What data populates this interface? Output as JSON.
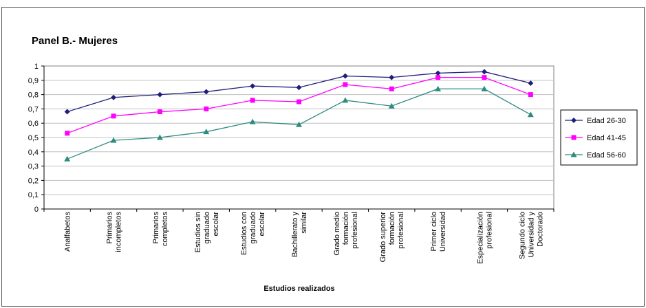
{
  "chart_data": {
    "type": "line",
    "title": "Panel B.- Mujeres",
    "xlabel": "Estudios realizados",
    "ylabel": "",
    "ylim": [
      0,
      1
    ],
    "yticks": [
      "0",
      "0,1",
      "0,2",
      "0,3",
      "0,4",
      "0,5",
      "0,6",
      "0,7",
      "0,8",
      "0,9",
      "1"
    ],
    "grid": true,
    "legend_position": "right",
    "categories": [
      [
        "Analfabetos"
      ],
      [
        "Primarios",
        "incompletos"
      ],
      [
        "Primarios",
        "completos"
      ],
      [
        "Estudios sin",
        "graduado",
        "escolar"
      ],
      [
        "Estudios con",
        "graduado",
        "escolar"
      ],
      [
        "Bachillerato y",
        "similar"
      ],
      [
        "Grado medio",
        "formación",
        "profesional"
      ],
      [
        "Grado superior",
        "formación",
        "profesional"
      ],
      [
        "Primer ciclo",
        "Universidad"
      ],
      [
        "Especialización",
        "profesional"
      ],
      [
        "Segundo ciclo",
        "Universidad y",
        "Doctorado"
      ]
    ],
    "series": [
      {
        "name": "Edad 26-30",
        "color": "#1f1f7a",
        "marker": "diamond",
        "values": [
          0.68,
          0.78,
          0.8,
          0.82,
          0.86,
          0.85,
          0.93,
          0.92,
          0.95,
          0.96,
          0.88
        ]
      },
      {
        "name": "Edad 41-45",
        "color": "#ff00ff",
        "marker": "square",
        "values": [
          0.53,
          0.65,
          0.68,
          0.7,
          0.76,
          0.75,
          0.87,
          0.84,
          0.92,
          0.92,
          0.8
        ]
      },
      {
        "name": "Edad 56-60",
        "color": "#2e8b80",
        "marker": "triangle",
        "values": [
          0.35,
          0.48,
          0.5,
          0.54,
          0.61,
          0.59,
          0.76,
          0.72,
          0.84,
          0.84,
          0.66
        ]
      }
    ]
  }
}
